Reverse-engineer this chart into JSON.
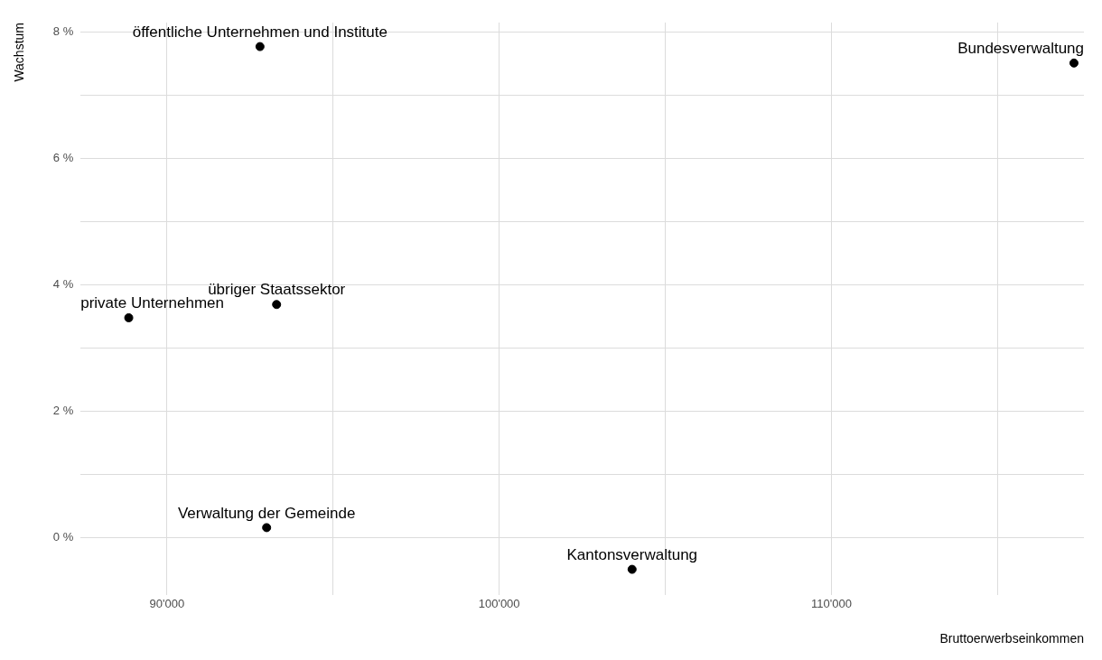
{
  "chart_data": {
    "type": "scatter",
    "xlabel": "Bruttoerwerbseinkommen",
    "ylabel": "Wachstum",
    "x": [
      92800,
      117300,
      93300,
      88850,
      93000,
      104000
    ],
    "series": [
      {
        "color": "#000000",
        "values": [
          7.77,
          7.51,
          3.69,
          3.48,
          0.16,
          -0.5
        ]
      }
    ],
    "xlim": [
      87400,
      117600
    ],
    "ylim": [
      -0.9,
      8.15
    ],
    "xticks": [
      {
        "value": 90000,
        "label": "90'000"
      },
      {
        "value": 95000,
        "label": null
      },
      {
        "value": 100000,
        "label": "100'000"
      },
      {
        "value": 105000,
        "label": null
      },
      {
        "value": 110000,
        "label": "110'000"
      },
      {
        "value": 115000,
        "label": null
      }
    ],
    "yticks": [
      {
        "value": 0,
        "label": "0 %"
      },
      {
        "value": 1,
        "label": null
      },
      {
        "value": 2,
        "label": "2 %"
      },
      {
        "value": 3,
        "label": null
      },
      {
        "value": 4,
        "label": "4 %"
      },
      {
        "value": 5,
        "label": null
      },
      {
        "value": 6,
        "label": "6 %"
      },
      {
        "value": 7,
        "label": null
      },
      {
        "value": 8,
        "label": "8 %"
      }
    ],
    "grid": true,
    "marker": "circle",
    "annotations": [
      {
        "text": "öffentliche Unternehmen und Institute",
        "x": 92800,
        "y": 7.77
      },
      {
        "text": "Bundesverwaltung",
        "x": 117300,
        "y": 7.51
      },
      {
        "text": "übriger Staatssektor",
        "x": 93300,
        "y": 3.69
      },
      {
        "text": "private Unternehmen",
        "x": 88850,
        "y": 3.48
      },
      {
        "text": "Verwaltung der Gemeinde",
        "x": 93000,
        "y": 0.16
      },
      {
        "text": "Kantonsverwaltung",
        "x": 104000,
        "y": -0.5
      }
    ]
  }
}
